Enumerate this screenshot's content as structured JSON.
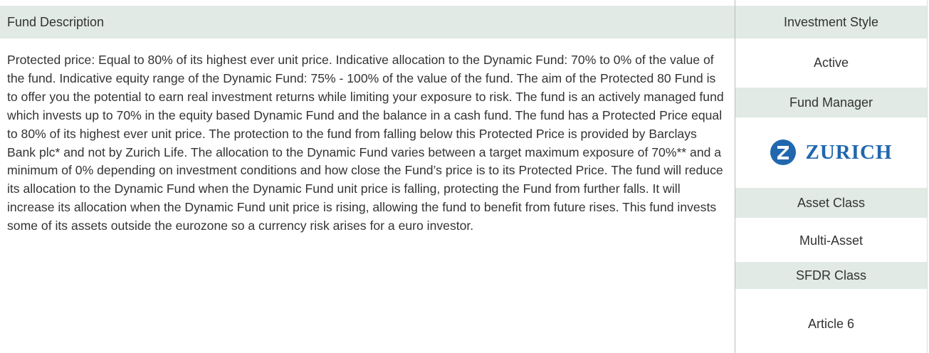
{
  "description": {
    "heading": "Fund Description",
    "text": "Protected price: Equal to 80% of its highest ever unit price. Indicative allocation to the Dynamic Fund: 70% to 0% of the value of the fund. Indicative equity range of the Dynamic Fund: 75% - 100% of the value of the fund. The aim of the Protected 80 Fund is to offer you the potential to earn real investment returns while limiting your exposure to risk. The fund is an actively managed fund which invests up to 70% in the equity based Dynamic Fund and the balance in a cash fund. The fund has a Protected Price equal to 80% of its highest ever unit price. The protection to the fund from falling below this Protected Price is provided by Barclays Bank plc* and not by Zurich Life. The allocation to the Dynamic Fund varies between a target maximum exposure of 70%** and a minimum of 0% depending on investment conditions and how close the Fund’s price is to its Protected Price. The fund will reduce its allocation to the Dynamic Fund when the Dynamic Fund unit price is falling, protecting the Fund from further falls. It will increase its allocation when the Dynamic Fund unit price is rising, allowing the fund to benefit from future rises. This fund invests some of its assets outside the eurozone so a currency risk arises for a euro investor."
  },
  "sidebar": {
    "investment_style": {
      "heading": "Investment Style",
      "value": "Active"
    },
    "fund_manager": {
      "heading": "Fund Manager",
      "logo_text": "ZURICH"
    },
    "asset_class": {
      "heading": "Asset Class",
      "value": "Multi-Asset"
    },
    "sfdr_class": {
      "heading": "SFDR Class",
      "value": "Article 6"
    }
  }
}
